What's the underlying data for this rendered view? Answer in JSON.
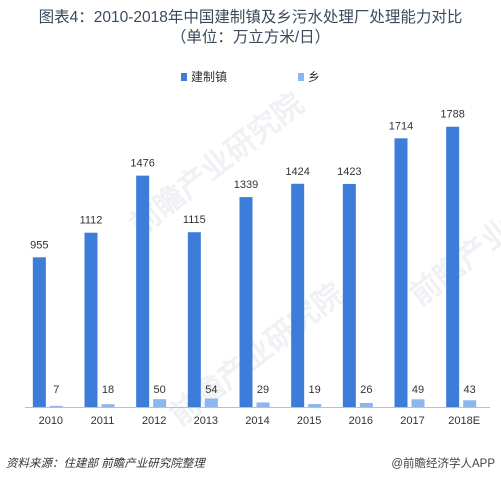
{
  "title": {
    "line1": "图表4：2010-2018年中国建制镇及乡污水处理厂处理能力对比",
    "line2": "（单位：万立方米/日）"
  },
  "chart_data": {
    "type": "bar",
    "categories": [
      "2010",
      "2011",
      "2012",
      "2013",
      "2014",
      "2015",
      "2016",
      "2017",
      "2018E"
    ],
    "series": [
      {
        "name": "建制镇",
        "color": "#3b7dd8",
        "values": [
          955,
          1112,
          1476,
          1115,
          1339,
          1424,
          1423,
          1714,
          1788
        ]
      },
      {
        "name": "乡",
        "color": "#8db7ec",
        "values": [
          7,
          18,
          50,
          54,
          29,
          19,
          26,
          49,
          43
        ]
      }
    ],
    "ylim": [
      0,
      1850
    ],
    "grid": false,
    "legend": "top-center",
    "data_labels": true
  },
  "footer": {
    "source": "资料来源：住建部 前瞻产业研究院整理",
    "brand": "@前瞻经济学人APP"
  },
  "watermarks": [
    "前瞻产业研究院",
    "前瞻产业研究院",
    "前瞻产业研究院"
  ]
}
